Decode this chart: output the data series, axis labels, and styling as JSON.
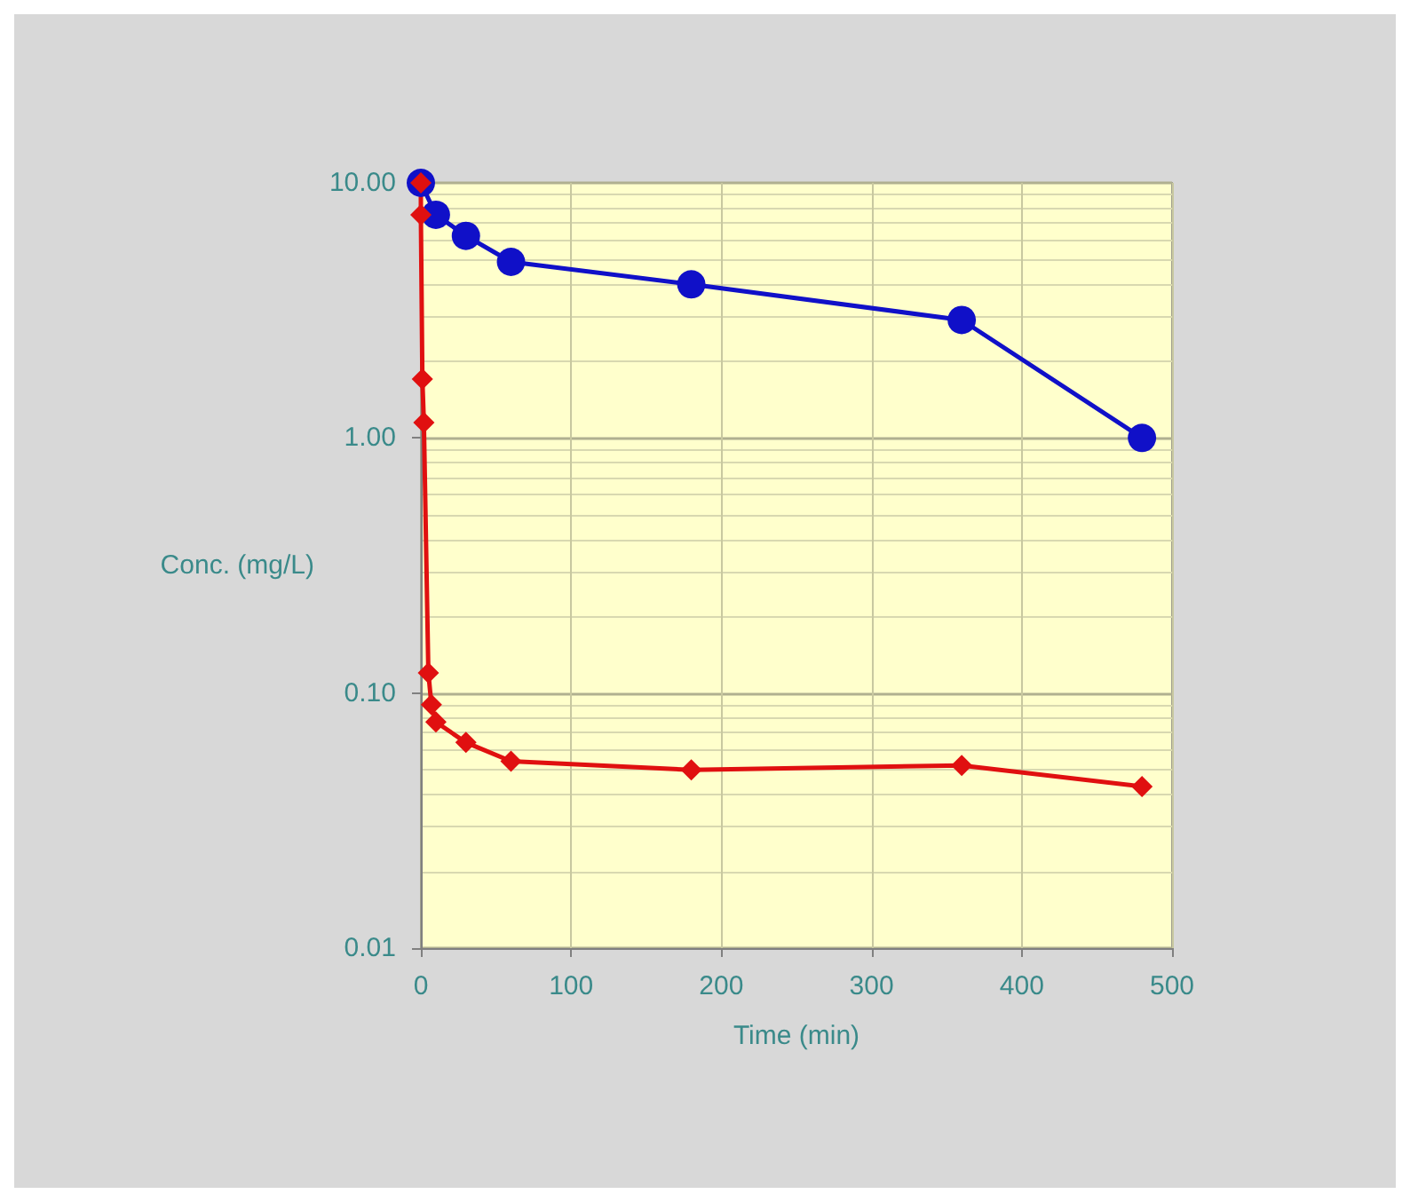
{
  "chart_data": {
    "type": "line",
    "xlabel": "Time (min)",
    "ylabel": "Conc. (mg/L)",
    "log": "y",
    "xlim": [
      0,
      500
    ],
    "xticks": [
      0,
      100,
      200,
      300,
      400,
      500
    ],
    "ylim": [
      0.01,
      10
    ],
    "yticks": [
      {
        "value": 0.01,
        "label": "0.01"
      },
      {
        "value": 0.1,
        "label": "0.10"
      },
      {
        "value": 1,
        "label": "1.00"
      },
      {
        "value": 10,
        "label": "10.00"
      }
    ],
    "grid": true,
    "series": [
      {
        "color": "#1010c8",
        "marker": "circle",
        "x": [
          0,
          10,
          30,
          60,
          180,
          360,
          480
        ],
        "values": [
          10,
          7.5,
          6.2,
          4.9,
          4,
          2.9,
          1
        ]
      },
      {
        "color": "#e01010",
        "marker": "diamond",
        "x": [
          0,
          0,
          1,
          2,
          5,
          7,
          10,
          30,
          60,
          180,
          360,
          480
        ],
        "values": [
          10,
          7.5,
          1.7,
          1.15,
          0.12,
          0.09,
          0.077,
          0.064,
          0.054,
          0.05,
          0.052,
          0.043
        ]
      }
    ]
  }
}
